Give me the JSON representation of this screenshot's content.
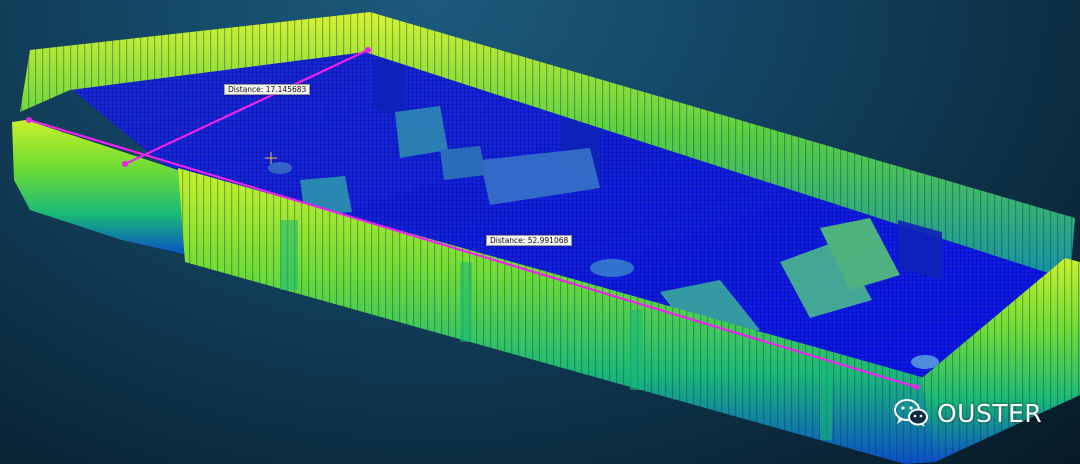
{
  "viewer": {
    "measurements": [
      {
        "label": "Distance: 17.145683"
      },
      {
        "label": "Distance: 52.991068"
      }
    ],
    "colors": {
      "wall_top": "#c8f02a",
      "wall_mid": "#4fd23a",
      "wall_low": "#12a890",
      "floor": "#0a1ad8",
      "measure_line": "#ee22ee",
      "background": "#0c2d42"
    }
  },
  "watermark": {
    "brand": "OUSTER",
    "icon": "wechat-icon"
  }
}
